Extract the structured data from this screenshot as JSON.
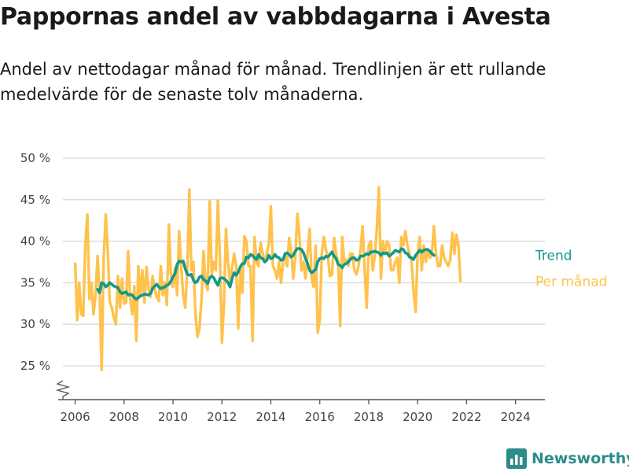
{
  "title": "Pappornas andel av vabbdagarna i Avesta",
  "subtitle": "Andel av nettodagar månad för månad. Trendlinjen är ett rullande medelvärde för de senaste tolv månaderna.",
  "brand": {
    "name": "Newsworthy",
    "logo_icon": "bar-chart-logo-icon"
  },
  "colors": {
    "monthly": "#FFC24D",
    "trend": "#12998A",
    "grid": "#dddddd",
    "axis": "#555555"
  },
  "chart_data": {
    "type": "line",
    "x_ticks": [
      "2006",
      "2008",
      "2010",
      "2012",
      "2014",
      "2016",
      "2018",
      "2020",
      "2022",
      "2024"
    ],
    "y_ticks": [
      "25 %",
      "30 %",
      "35 %",
      "40 %",
      "45 %",
      "50 %"
    ],
    "ylim": [
      25,
      50
    ],
    "xlim": [
      2005.5,
      2025.2
    ],
    "grid": "horizontal",
    "axis_break": true,
    "legend_placement": "right, at line ends",
    "series": [
      {
        "name": "Per månad",
        "start": "2006-01",
        "values": [
          37.3,
          30.5,
          35.0,
          31.2,
          31.0,
          39.5,
          43.2,
          33.0,
          35.0,
          31.2,
          33.5,
          38.2,
          33.7,
          24.5,
          38.0,
          43.2,
          39.0,
          32.7,
          32.0,
          30.8,
          30.0,
          35.8,
          32.0,
          35.5,
          32.5,
          32.6,
          38.8,
          33.0,
          31.2,
          34.6,
          28.0,
          37.0,
          33.5,
          36.5,
          32.6,
          36.9,
          34.2,
          33.3,
          35.8,
          34.3,
          33.3,
          32.8,
          37.0,
          33.5,
          35.0,
          32.3,
          42.0,
          36.0,
          34.5,
          36.8,
          33.5,
          41.2,
          37.0,
          33.5,
          32.0,
          36.5,
          46.2,
          36.5,
          37.5,
          31.5,
          28.5,
          29.5,
          33.0,
          38.8,
          35.0,
          34.1,
          44.8,
          36.0,
          37.5,
          36.5,
          44.9,
          38.0,
          27.8,
          32.5,
          41.5,
          37.5,
          35.0,
          36.8,
          38.5,
          37.0,
          29.5,
          36.5,
          33.8,
          40.6,
          40.0,
          37.0,
          37.0,
          28.0,
          40.5,
          37.5,
          37.0,
          39.8,
          38.5,
          37.5,
          38.5,
          39.6,
          44.2,
          37.0,
          36.5,
          35.5,
          37.5,
          35.0,
          37.5,
          38.5,
          37.0,
          40.4,
          38.8,
          35.5,
          38.2,
          43.3,
          40.6,
          36.5,
          37.5,
          35.5,
          38.5,
          41.5,
          35.5,
          34.5,
          39.5,
          29.0,
          30.5,
          38.5,
          40.5,
          39.0,
          38.0,
          35.8,
          36.0,
          40.4,
          38.5,
          37.5,
          29.8,
          40.5,
          37.5,
          37.8,
          37.0,
          38.5,
          38.5,
          36.5,
          36.0,
          37.0,
          39.0,
          41.8,
          36.5,
          32.0,
          39.5,
          40.0,
          36.5,
          38.2,
          41.5,
          46.5,
          35.5,
          40.0,
          38.5,
          40.0,
          39.5,
          36.5,
          36.5,
          37.5,
          38.0,
          35.0,
          40.5,
          39.5,
          41.2,
          39.5,
          38.5,
          37.5,
          34.0,
          31.5,
          38.5,
          40.5,
          36.5,
          39.5,
          37.5,
          39.0,
          38.0,
          38.5,
          41.8,
          38.5,
          37.0,
          37.0,
          39.5,
          38.0,
          37.5,
          37.0,
          37.8,
          41.0,
          38.5,
          40.8,
          39.5,
          35.2
        ]
      },
      {
        "name": "Trend",
        "start": "2006-12",
        "values": [
          34.2,
          33.8,
          35.0,
          34.9,
          34.5,
          34.7,
          35.0,
          34.8,
          34.6,
          34.5,
          34.4,
          33.9,
          33.7,
          33.8,
          33.9,
          33.5,
          33.6,
          33.5,
          33.2,
          33.0,
          33.2,
          33.4,
          33.5,
          33.6,
          33.6,
          33.5,
          33.7,
          34.3,
          34.6,
          34.8,
          34.5,
          34.3,
          34.4,
          34.5,
          34.7,
          34.8,
          35.2,
          35.7,
          36.1,
          37.2,
          37.6,
          37.5,
          37.6,
          36.7,
          36.0,
          35.9,
          36.0,
          35.3,
          35.0,
          35.2,
          35.7,
          35.8,
          35.4,
          35.2,
          34.9,
          35.6,
          35.8,
          35.6,
          35.1,
          34.7,
          35.5,
          35.6,
          35.5,
          35.3,
          35.0,
          34.5,
          35.5,
          36.2,
          35.9,
          36.3,
          36.9,
          37.3,
          37.3,
          38.1,
          38.0,
          38.4,
          38.3,
          38.0,
          37.8,
          38.4,
          38.0,
          37.9,
          37.5,
          37.7,
          38.3,
          37.9,
          38.0,
          38.4,
          38.1,
          38.0,
          37.7,
          37.8,
          38.5,
          38.6,
          38.4,
          38.1,
          38.3,
          38.8,
          39.1,
          39.1,
          39.0,
          38.6,
          37.9,
          37.3,
          36.5,
          36.2,
          36.4,
          36.6,
          37.5,
          37.9,
          38.0,
          37.9,
          38.2,
          38.1,
          38.4,
          38.7,
          38.2,
          37.9,
          37.2,
          37.1,
          36.8,
          37.2,
          37.3,
          37.5,
          37.8,
          38.0,
          38.0,
          37.7,
          37.8,
          38.2,
          38.2,
          38.3,
          38.5,
          38.4,
          38.7,
          38.7,
          38.8,
          38.7,
          38.6,
          38.3,
          38.6,
          38.5,
          38.6,
          38.2,
          38.4,
          38.6,
          38.9,
          38.8,
          38.7,
          39.1,
          39.0,
          38.6,
          38.5,
          38.1,
          38.0,
          37.8,
          38.3,
          38.6,
          38.9,
          38.7,
          38.9,
          39.0,
          39.0,
          38.8,
          38.5,
          38.3
        ]
      }
    ]
  }
}
